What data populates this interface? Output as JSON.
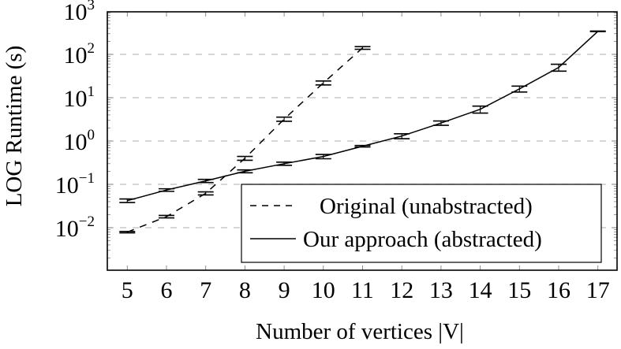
{
  "chart_data": {
    "type": "line",
    "title": "",
    "xlabel": "Number of vertices |V|",
    "ylabel": "LOG Runtime (s)",
    "yscale": "log",
    "ylim": [
      0.001,
      1000
    ],
    "xlim": [
      4.5,
      17.5
    ],
    "grid": "horizontal dashed at decades",
    "legend_position": "lower right",
    "x_ticks": [
      5,
      6,
      7,
      8,
      9,
      10,
      11,
      12,
      13,
      14,
      15,
      16,
      17
    ],
    "y_ticks": [
      {
        "base": "10",
        "exp": "−2",
        "value": 0.01
      },
      {
        "base": "10",
        "exp": "−1",
        "value": 0.1
      },
      {
        "base": "10",
        "exp": "0",
        "value": 1
      },
      {
        "base": "10",
        "exp": "1",
        "value": 10
      },
      {
        "base": "10",
        "exp": "2",
        "value": 100
      },
      {
        "base": "10",
        "exp": "3",
        "value": 1000
      }
    ],
    "series": [
      {
        "name": "Original (unabstracted)",
        "style": "dashed",
        "color": "#000000",
        "x": [
          5,
          6,
          7,
          8,
          9,
          10,
          11
        ],
        "values": [
          0.0079,
          0.018,
          0.062,
          0.4,
          3.2,
          22,
          141
        ],
        "error": [
          0.0003,
          0.0012,
          0.005,
          0.04,
          0.35,
          2.3,
          10
        ]
      },
      {
        "name": "Our approach (abstracted)",
        "style": "solid",
        "color": "#000000",
        "x": [
          5,
          6,
          7,
          8,
          9,
          10,
          11,
          12,
          13,
          14,
          15,
          16,
          17
        ],
        "values": [
          0.042,
          0.074,
          0.12,
          0.2,
          0.3,
          0.44,
          0.76,
          1.3,
          2.6,
          5.4,
          16,
          50,
          340
        ],
        "error": [
          0.004,
          0.005,
          0.01,
          0.015,
          0.025,
          0.05,
          0.03,
          0.17,
          0.3,
          1.0,
          2.5,
          9,
          5
        ]
      }
    ]
  },
  "legend": {
    "items": [
      {
        "label": "Original (unabstracted)",
        "style": "dashed"
      },
      {
        "label": "Our approach (abstracted)",
        "style": "solid"
      }
    ]
  },
  "axes": {
    "xlabel": "Number of vertices |V|",
    "ylabel": "LOG Runtime (s)"
  },
  "colors": {
    "line": "#000000",
    "grid": "#bdbdbd",
    "axis": "#000000",
    "minor_tick": "#808080"
  }
}
